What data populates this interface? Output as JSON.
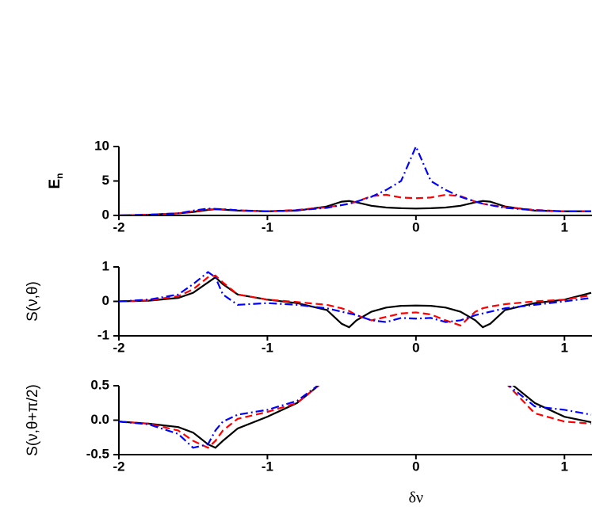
{
  "chart_data": [
    {
      "type": "line",
      "ylabel": "E",
      "ylabel_subscript": "n",
      "x": [
        -2,
        -1.8,
        -1.6,
        -1.5,
        -1.4,
        -1.35,
        -1.3,
        -1.2,
        -1,
        -0.8,
        -0.6,
        -0.5,
        -0.45,
        -0.4,
        -0.3,
        -0.2,
        -0.1,
        0,
        0.1,
        0.2,
        0.3,
        0.4,
        0.45,
        0.5,
        0.6,
        0.8,
        1,
        1.18
      ],
      "xlim": [
        -2,
        1.18
      ],
      "xticks": [
        -2,
        -1,
        0,
        1
      ],
      "ylim": [
        0,
        10
      ],
      "yticks": [
        0,
        5,
        10
      ],
      "grid": false,
      "series": [
        {
          "color": "#000000",
          "dash": "solid",
          "values": [
            0,
            0.1,
            0.3,
            0.5,
            0.8,
            0.9,
            0.85,
            0.7,
            0.6,
            0.7,
            1.3,
            2.0,
            2.1,
            1.9,
            1.4,
            1.15,
            1.05,
            1.0,
            1.05,
            1.15,
            1.4,
            1.9,
            2.1,
            2.0,
            1.3,
            0.7,
            0.6,
            0.6
          ]
        },
        {
          "color": "#ff0000",
          "dash": "dashed",
          "values": [
            0,
            0.1,
            0.3,
            0.6,
            0.9,
            0.9,
            0.9,
            0.75,
            0.6,
            0.8,
            1.2,
            1.5,
            1.7,
            2.0,
            2.8,
            3.0,
            2.6,
            2.5,
            2.6,
            3.0,
            2.8,
            2.0,
            1.7,
            1.5,
            1.2,
            0.8,
            0.6,
            0.6
          ]
        },
        {
          "color": "#0000ff",
          "dash": "dashdot",
          "values": [
            0,
            0.1,
            0.3,
            0.7,
            1.0,
            0.95,
            0.9,
            0.75,
            0.6,
            0.75,
            1.1,
            1.5,
            1.7,
            2.0,
            2.7,
            3.7,
            5.0,
            10,
            5.0,
            3.7,
            2.7,
            2.0,
            1.7,
            1.5,
            1.1,
            0.75,
            0.6,
            0.6
          ]
        }
      ]
    },
    {
      "type": "line",
      "ylabel": "S(ν,θ)",
      "x": [
        -2,
        -1.8,
        -1.6,
        -1.5,
        -1.4,
        -1.35,
        -1.3,
        -1.2,
        -1,
        -0.8,
        -0.6,
        -0.5,
        -0.45,
        -0.4,
        -0.3,
        -0.2,
        -0.1,
        0,
        0.1,
        0.2,
        0.3,
        0.4,
        0.45,
        0.5,
        0.6,
        0.8,
        1,
        1.18
      ],
      "xlim": [
        -2,
        1.18
      ],
      "xticks": [
        -2,
        -1,
        0,
        1
      ],
      "ylim": [
        -1,
        1
      ],
      "yticks": [
        -1,
        0,
        1
      ],
      "grid": false,
      "series": [
        {
          "color": "#000000",
          "dash": "solid",
          "values": [
            0,
            0.02,
            0.1,
            0.25,
            0.55,
            0.7,
            0.5,
            0.2,
            0.05,
            -0.05,
            -0.25,
            -0.65,
            -0.75,
            -0.55,
            -0.3,
            -0.18,
            -0.13,
            -0.12,
            -0.13,
            -0.18,
            -0.3,
            -0.55,
            -0.75,
            -0.65,
            -0.25,
            -0.05,
            0.05,
            0.25
          ]
        },
        {
          "color": "#ff0000",
          "dash": "dashed",
          "values": [
            0,
            0.03,
            0.15,
            0.35,
            0.7,
            0.75,
            0.55,
            0.2,
            0.05,
            -0.02,
            -0.1,
            -0.2,
            -0.28,
            -0.4,
            -0.55,
            -0.45,
            -0.35,
            -0.32,
            -0.38,
            -0.55,
            -0.7,
            -0.3,
            -0.2,
            -0.15,
            -0.08,
            0,
            0.05,
            0.18
          ]
        },
        {
          "color": "#0000ff",
          "dash": "dashdot",
          "values": [
            0,
            0.05,
            0.2,
            0.5,
            0.85,
            0.7,
            0.2,
            -0.1,
            -0.05,
            -0.1,
            -0.2,
            -0.3,
            -0.35,
            -0.4,
            -0.55,
            -0.6,
            -0.48,
            -0.5,
            -0.48,
            -0.6,
            -0.55,
            -0.4,
            -0.35,
            -0.3,
            -0.2,
            -0.1,
            0,
            0.1
          ]
        }
      ]
    },
    {
      "type": "line",
      "ylabel": "S(ν,θ+π/2)",
      "xlabel": "δν",
      "x": [
        -2,
        -1.8,
        -1.6,
        -1.5,
        -1.4,
        -1.35,
        -1.3,
        -1.2,
        -1,
        -0.8,
        -0.6,
        -0.5,
        -0.45,
        -0.4,
        -0.3,
        -0.2,
        -0.1,
        0,
        0.1,
        0.2,
        0.3,
        0.4,
        0.45,
        0.5,
        0.6,
        0.8,
        1,
        1.18
      ],
      "xlim": [
        -2,
        1.18
      ],
      "xticks": [
        -2,
        -1,
        0,
        1
      ],
      "ylim": [
        -0.5,
        0.5
      ],
      "yticks": [
        -0.5,
        {
          "value": 0,
          "label": "0.0"
        },
        0.5
      ],
      "grid": false,
      "series": [
        {
          "color": "#000000",
          "dash": "solid",
          "values": [
            -0.02,
            -0.05,
            -0.1,
            -0.18,
            -0.35,
            -0.4,
            -0.3,
            -0.12,
            0.05,
            0.25,
            0.6,
            null,
            null,
            null,
            null,
            null,
            null,
            null,
            null,
            null,
            null,
            null,
            null,
            null,
            0.6,
            0.25,
            0.05,
            -0.03
          ]
        },
        {
          "color": "#ff0000",
          "dash": "dashed",
          "values": [
            -0.02,
            -0.05,
            -0.15,
            -0.3,
            -0.4,
            -0.3,
            -0.15,
            0.02,
            0.12,
            0.25,
            0.6,
            null,
            null,
            null,
            null,
            null,
            null,
            null,
            null,
            null,
            null,
            null,
            null,
            null,
            0.55,
            0.1,
            -0.02,
            -0.05
          ]
        },
        {
          "color": "#0000ff",
          "dash": "dashdot",
          "values": [
            -0.02,
            -0.06,
            -0.2,
            -0.4,
            -0.35,
            -0.15,
            -0.02,
            0.08,
            0.15,
            0.28,
            0.6,
            null,
            null,
            null,
            null,
            null,
            null,
            null,
            null,
            null,
            null,
            null,
            null,
            null,
            0.55,
            0.2,
            0.15,
            0.08
          ]
        }
      ]
    }
  ]
}
